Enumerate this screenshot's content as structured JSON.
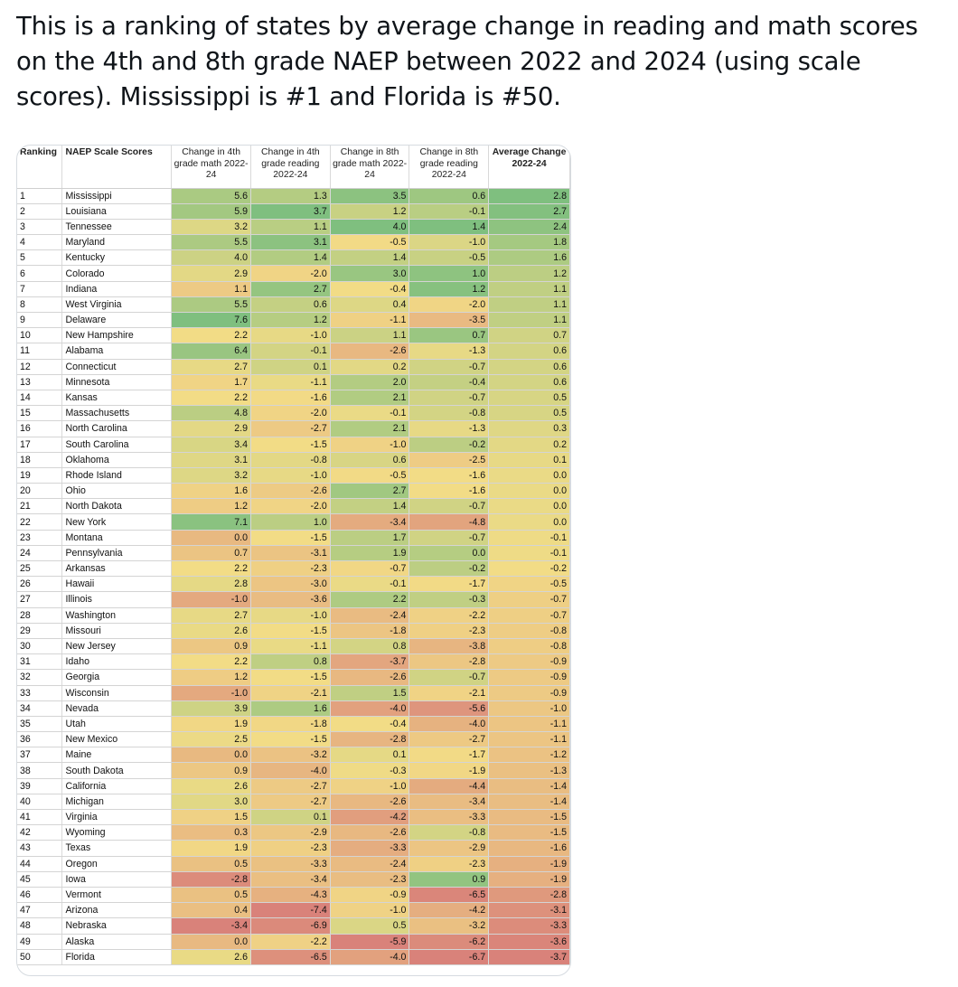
{
  "tweet": {
    "text": "This is a ranking of states by average change in reading and math scores on the 4th and 8th grade NAEP between 2022 and 2024 (using scale scores). Mississippi is #1 and Florida is #50."
  },
  "table": {
    "headers": [
      "Ranking",
      "NAEP Scale Scores",
      "Change in 4th grade math 2022-24",
      "Change in 4th grade reading 2022-24",
      "Change in 8th grade math 2022-24",
      "Change in 8th grade reading 2022-24",
      "Average Change 2022-24"
    ],
    "rows": [
      [
        "1",
        "Mississippi",
        "5.6",
        "1.3",
        "3.5",
        "0.6",
        "2.8"
      ],
      [
        "2",
        "Louisiana",
        "5.9",
        "3.7",
        "1.2",
        "-0.1",
        "2.7"
      ],
      [
        "3",
        "Tennessee",
        "3.2",
        "1.1",
        "4.0",
        "1.4",
        "2.4"
      ],
      [
        "4",
        "Maryland",
        "5.5",
        "3.1",
        "-0.5",
        "-1.0",
        "1.8"
      ],
      [
        "5",
        "Kentucky",
        "4.0",
        "1.4",
        "1.4",
        "-0.5",
        "1.6"
      ],
      [
        "6",
        "Colorado",
        "2.9",
        "-2.0",
        "3.0",
        "1.0",
        "1.2"
      ],
      [
        "7",
        "Indiana",
        "1.1",
        "2.7",
        "-0.4",
        "1.2",
        "1.1"
      ],
      [
        "8",
        "West Virginia",
        "5.5",
        "0.6",
        "0.4",
        "-2.0",
        "1.1"
      ],
      [
        "9",
        "Delaware",
        "7.6",
        "1.2",
        "-1.1",
        "-3.5",
        "1.1"
      ],
      [
        "10",
        "New Hampshire",
        "2.2",
        "-1.0",
        "1.1",
        "0.7",
        "0.7"
      ],
      [
        "11",
        "Alabama",
        "6.4",
        "-0.1",
        "-2.6",
        "-1.3",
        "0.6"
      ],
      [
        "12",
        "Connecticut",
        "2.7",
        "0.1",
        "0.2",
        "-0.7",
        "0.6"
      ],
      [
        "13",
        "Minnesota",
        "1.7",
        "-1.1",
        "2.0",
        "-0.4",
        "0.6"
      ],
      [
        "14",
        "Kansas",
        "2.2",
        "-1.6",
        "2.1",
        "-0.7",
        "0.5"
      ],
      [
        "15",
        "Massachusetts",
        "4.8",
        "-2.0",
        "-0.1",
        "-0.8",
        "0.5"
      ],
      [
        "16",
        "North Carolina",
        "2.9",
        "-2.7",
        "2.1",
        "-1.3",
        "0.3"
      ],
      [
        "17",
        "South Carolina",
        "3.4",
        "-1.5",
        "-1.0",
        "-0.2",
        "0.2"
      ],
      [
        "18",
        "Oklahoma",
        "3.1",
        "-0.8",
        "0.6",
        "-2.5",
        "0.1"
      ],
      [
        "19",
        "Rhode Island",
        "3.2",
        "-1.0",
        "-0.5",
        "-1.6",
        "0.0"
      ],
      [
        "20",
        "Ohio",
        "1.6",
        "-2.6",
        "2.7",
        "-1.6",
        "0.0"
      ],
      [
        "21",
        "North Dakota",
        "1.2",
        "-2.0",
        "1.4",
        "-0.7",
        "0.0"
      ],
      [
        "22",
        "New York",
        "7.1",
        "1.0",
        "-3.4",
        "-4.8",
        "0.0"
      ],
      [
        "23",
        "Montana",
        "0.0",
        "-1.5",
        "1.7",
        "-0.7",
        "-0.1"
      ],
      [
        "24",
        "Pennsylvania",
        "0.7",
        "-3.1",
        "1.9",
        "0.0",
        "-0.1"
      ],
      [
        "25",
        "Arkansas",
        "2.2",
        "-2.3",
        "-0.7",
        "-0.2",
        "-0.2"
      ],
      [
        "26",
        "Hawaii",
        "2.8",
        "-3.0",
        "-0.1",
        "-1.7",
        "-0.5"
      ],
      [
        "27",
        "Illinois",
        "-1.0",
        "-3.6",
        "2.2",
        "-0.3",
        "-0.7"
      ],
      [
        "28",
        "Washington",
        "2.7",
        "-1.0",
        "-2.4",
        "-2.2",
        "-0.7"
      ],
      [
        "29",
        "Missouri",
        "2.6",
        "-1.5",
        "-1.8",
        "-2.3",
        "-0.8"
      ],
      [
        "30",
        "New Jersey",
        "0.9",
        "-1.1",
        "0.8",
        "-3.8",
        "-0.8"
      ],
      [
        "31",
        "Idaho",
        "2.2",
        "0.8",
        "-3.7",
        "-2.8",
        "-0.9"
      ],
      [
        "32",
        "Georgia",
        "1.2",
        "-1.5",
        "-2.6",
        "-0.7",
        "-0.9"
      ],
      [
        "33",
        "Wisconsin",
        "-1.0",
        "-2.1",
        "1.5",
        "-2.1",
        "-0.9"
      ],
      [
        "34",
        "Nevada",
        "3.9",
        "1.6",
        "-4.0",
        "-5.6",
        "-1.0"
      ],
      [
        "35",
        "Utah",
        "1.9",
        "-1.8",
        "-0.4",
        "-4.0",
        "-1.1"
      ],
      [
        "36",
        "New Mexico",
        "2.5",
        "-1.5",
        "-2.8",
        "-2.7",
        "-1.1"
      ],
      [
        "37",
        "Maine",
        "0.0",
        "-3.2",
        "0.1",
        "-1.7",
        "-1.2"
      ],
      [
        "38",
        "South Dakota",
        "0.9",
        "-4.0",
        "-0.3",
        "-1.9",
        "-1.3"
      ],
      [
        "39",
        "California",
        "2.6",
        "-2.7",
        "-1.0",
        "-4.4",
        "-1.4"
      ],
      [
        "40",
        "Michigan",
        "3.0",
        "-2.7",
        "-2.6",
        "-3.4",
        "-1.4"
      ],
      [
        "41",
        "Virginia",
        "1.5",
        "0.1",
        "-4.2",
        "-3.3",
        "-1.5"
      ],
      [
        "42",
        "Wyoming",
        "0.3",
        "-2.9",
        "-2.6",
        "-0.8",
        "-1.5"
      ],
      [
        "43",
        "Texas",
        "1.9",
        "-2.3",
        "-3.3",
        "-2.9",
        "-1.6"
      ],
      [
        "44",
        "Oregon",
        "0.5",
        "-3.3",
        "-2.4",
        "-2.3",
        "-1.9"
      ],
      [
        "45",
        "Iowa",
        "-2.8",
        "-3.4",
        "-2.3",
        "0.9",
        "-1.9"
      ],
      [
        "46",
        "Vermont",
        "0.5",
        "-4.3",
        "-0.9",
        "-6.5",
        "-2.8"
      ],
      [
        "47",
        "Arizona",
        "0.4",
        "-7.4",
        "-1.0",
        "-4.2",
        "-3.1"
      ],
      [
        "48",
        "Nebraska",
        "-3.4",
        "-6.9",
        "0.5",
        "-3.2",
        "-3.3"
      ],
      [
        "49",
        "Alaska",
        "0.0",
        "-2.2",
        "-5.9",
        "-6.2",
        "-3.6"
      ],
      [
        "50",
        "Florida",
        "2.6",
        "-6.5",
        "-4.0",
        "-6.7",
        "-3.7"
      ]
    ]
  },
  "colors": {
    "heat_high": "#7fbf7f",
    "heat_mid": "#f2dc86",
    "heat_low": "#d9827a",
    "text": "#0f1419",
    "card_border": "#d6dbe0"
  }
}
